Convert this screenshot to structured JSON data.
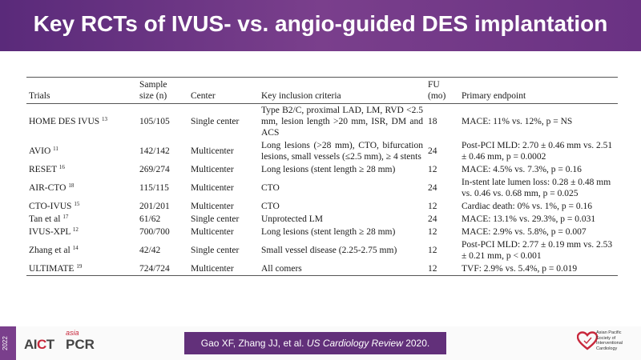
{
  "slide": {
    "title": "Key RCTs of IVUS- vs. angio-guided DES implantation"
  },
  "table": {
    "headers": {
      "trials": "Trials",
      "sample_size_1": "Sample",
      "sample_size_2": "size (n)",
      "center": "Center",
      "criteria": "Key inclusion criteria",
      "fu_1": "FU",
      "fu_2": "(mo)",
      "endpoint": "Primary endpoint"
    },
    "rows": [
      {
        "trial": "HOME DES IVUS",
        "ref": "13",
        "size": "105/105",
        "center": "Single center",
        "criteria": "Type B2/C, proximal LAD, LM, RVD <2.5 mm, lesion length >20 mm, ISR, DM and ACS",
        "fu": "18",
        "endpoint": "MACE: 11% vs. 12%, p = NS"
      },
      {
        "trial": "AVIO",
        "ref": "11",
        "size": "142/142",
        "center": "Multicenter",
        "criteria": "Long lesions (>28 mm), CTO, bifurcation lesions, small vessels (≤2.5 mm), ≥ 4 stents",
        "fu": "24",
        "endpoint": "Post-PCI MLD: 2.70 ± 0.46 mm vs. 2.51 ± 0.46 mm, p = 0.0002"
      },
      {
        "trial": "RESET",
        "ref": "16",
        "size": "269/274",
        "center": "Multicenter",
        "criteria": "Long lesions (stent length ≥ 28 mm)",
        "fu": "12",
        "endpoint": "MACE: 4.5% vs. 7.3%, p = 0.16"
      },
      {
        "trial": "AIR-CTO",
        "ref": "18",
        "size": "115/115",
        "center": "Multicenter",
        "criteria": "CTO",
        "fu": "24",
        "endpoint": "In-stent late lumen loss: 0.28 ± 0.48 mm vs. 0.46 vs. 0.68 mm, p = 0.025"
      },
      {
        "trial": "CTO-IVUS",
        "ref": "15",
        "size": "201/201",
        "center": "Multicenter",
        "criteria": "CTO",
        "fu": "12",
        "endpoint": "Cardiac death: 0% vs. 1%, p = 0.16"
      },
      {
        "trial": "Tan et al",
        "ref": "17",
        "size": "61/62",
        "center": "Single center",
        "criteria": "Unprotected LM",
        "fu": "24",
        "endpoint": "MACE: 13.1% vs. 29.3%, p = 0.031"
      },
      {
        "trial": "IVUS-XPL",
        "ref": "12",
        "size": "700/700",
        "center": "Multicenter",
        "criteria": "Long lesions (stent length ≥ 28 mm)",
        "fu": "12",
        "endpoint": "MACE: 2.9% vs. 5.8%, p = 0.007"
      },
      {
        "trial": "Zhang et al",
        "ref": "14",
        "size": "42/42",
        "center": "Single center",
        "criteria": "Small vessel disease (2.25-2.75 mm)",
        "fu": "12",
        "endpoint": "Post-PCI MLD: 2.77 ± 0.19 mm vs. 2.53 ± 0.21 mm, p < 0.001"
      },
      {
        "trial": "ULTIMATE",
        "ref": "19",
        "size": "724/724",
        "center": "Multicenter",
        "criteria": "All comers",
        "fu": "12",
        "endpoint": "TVF: 2.9% vs. 5.4%, p = 0.019"
      }
    ]
  },
  "footer": {
    "year": "2022",
    "logo_aict_a": "AI",
    "logo_aict_c": "C",
    "logo_aict_t": "T",
    "logo_asia": "asia",
    "logo_pcr": "PCR",
    "citation_authors": "Gao XF, Zhang JJ, et al. ",
    "citation_journal": "US Cardiology Review",
    "citation_year": " 2020.",
    "society_line1": "Asian Pacific",
    "society_line2": "Society of",
    "society_line3": "Interventional",
    "society_line4": "Cardiology"
  },
  "colors": {
    "header_purple": "#6a3283",
    "citation_purple": "#62307a",
    "logo_red": "#c8283c"
  }
}
